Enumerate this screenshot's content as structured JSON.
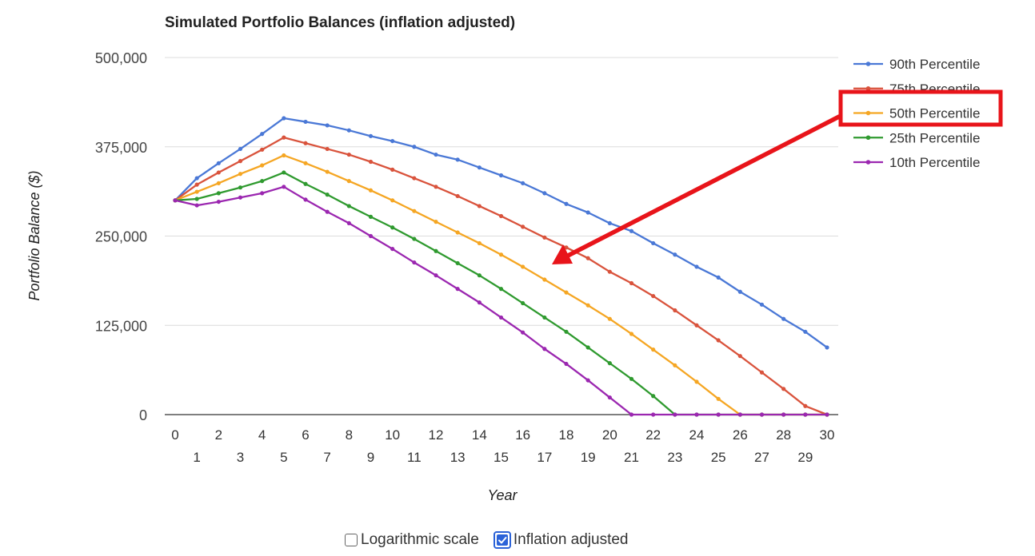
{
  "chart_data": {
    "type": "line",
    "title": "Simulated Portfolio Balances (inflation adjusted)",
    "xlabel": "Year",
    "ylabel": "Portfolio Balance ($)",
    "ylim": [
      0,
      500000
    ],
    "xlim": [
      0,
      30
    ],
    "y_ticks": [
      0,
      125000,
      250000,
      375000,
      500000
    ],
    "y_tick_labels": [
      "0",
      "125,000",
      "250,000",
      "375,000",
      "500,000"
    ],
    "x_tick_labels": [
      "0",
      "1",
      "2",
      "3",
      "4",
      "5",
      "6",
      "7",
      "8",
      "9",
      "10",
      "11",
      "12",
      "13",
      "14",
      "15",
      "16",
      "17",
      "18",
      "19",
      "20",
      "21",
      "22",
      "23",
      "24",
      "25",
      "26",
      "27",
      "28",
      "29",
      "30"
    ],
    "grid": true,
    "legend_position": "right",
    "x": [
      0,
      1,
      2,
      3,
      4,
      5,
      6,
      7,
      8,
      9,
      10,
      11,
      12,
      13,
      14,
      15,
      16,
      17,
      18,
      19,
      20,
      21,
      22,
      23,
      24,
      25,
      26,
      27,
      28,
      29,
      30
    ],
    "series": [
      {
        "name": "90th Percentile",
        "color": "#4a78d6",
        "values": [
          300000,
          331000,
          352000,
          372000,
          393000,
          415000,
          410000,
          405000,
          398000,
          390000,
          383000,
          375000,
          364000,
          357000,
          346000,
          335000,
          324000,
          310000,
          295000,
          283000,
          268000,
          257000,
          240000,
          224000,
          207000,
          192000,
          172000,
          154000,
          134000,
          116000,
          94000
        ]
      },
      {
        "name": "75th Percentile",
        "color": "#d9533c",
        "values": [
          300000,
          322000,
          339000,
          355000,
          371000,
          388000,
          380000,
          372000,
          364000,
          354000,
          343000,
          331000,
          319000,
          306000,
          292000,
          278000,
          263000,
          248000,
          234000,
          219000,
          200000,
          184000,
          166000,
          146000,
          125000,
          104000,
          82000,
          59000,
          36000,
          12000,
          0
        ]
      },
      {
        "name": "50th Percentile",
        "color": "#f5a623",
        "values": [
          300000,
          312000,
          324000,
          337000,
          349000,
          363000,
          352000,
          340000,
          327000,
          314000,
          300000,
          285000,
          270000,
          255000,
          240000,
          224000,
          207000,
          189000,
          171000,
          153000,
          134000,
          113000,
          91000,
          69000,
          46000,
          22000,
          0,
          0,
          0,
          0,
          0
        ]
      },
      {
        "name": "25th Percentile",
        "color": "#2f9a2f",
        "values": [
          300000,
          302000,
          310000,
          318000,
          327000,
          339000,
          323000,
          308000,
          292000,
          277000,
          262000,
          246000,
          229000,
          212000,
          195000,
          176000,
          156000,
          136000,
          116000,
          94000,
          72000,
          50000,
          26000,
          0,
          0,
          0,
          0,
          0,
          0,
          0,
          0
        ]
      },
      {
        "name": "10th Percentile",
        "color": "#9b27b0",
        "values": [
          300000,
          293000,
          298000,
          304000,
          310000,
          319000,
          301000,
          284000,
          268000,
          250000,
          232000,
          213000,
          195000,
          176000,
          157000,
          136000,
          115000,
          92000,
          71000,
          48000,
          24000,
          0,
          0,
          0,
          0,
          0,
          0,
          0,
          0,
          0,
          0
        ]
      }
    ],
    "annotation": {
      "type": "arrow-callout",
      "target": "50th Percentile",
      "color": "#e8141a"
    }
  },
  "controls": {
    "log_scale_label": "Logarithmic scale",
    "log_scale_checked": false,
    "inflation_label": "Inflation adjusted",
    "inflation_checked": true
  }
}
